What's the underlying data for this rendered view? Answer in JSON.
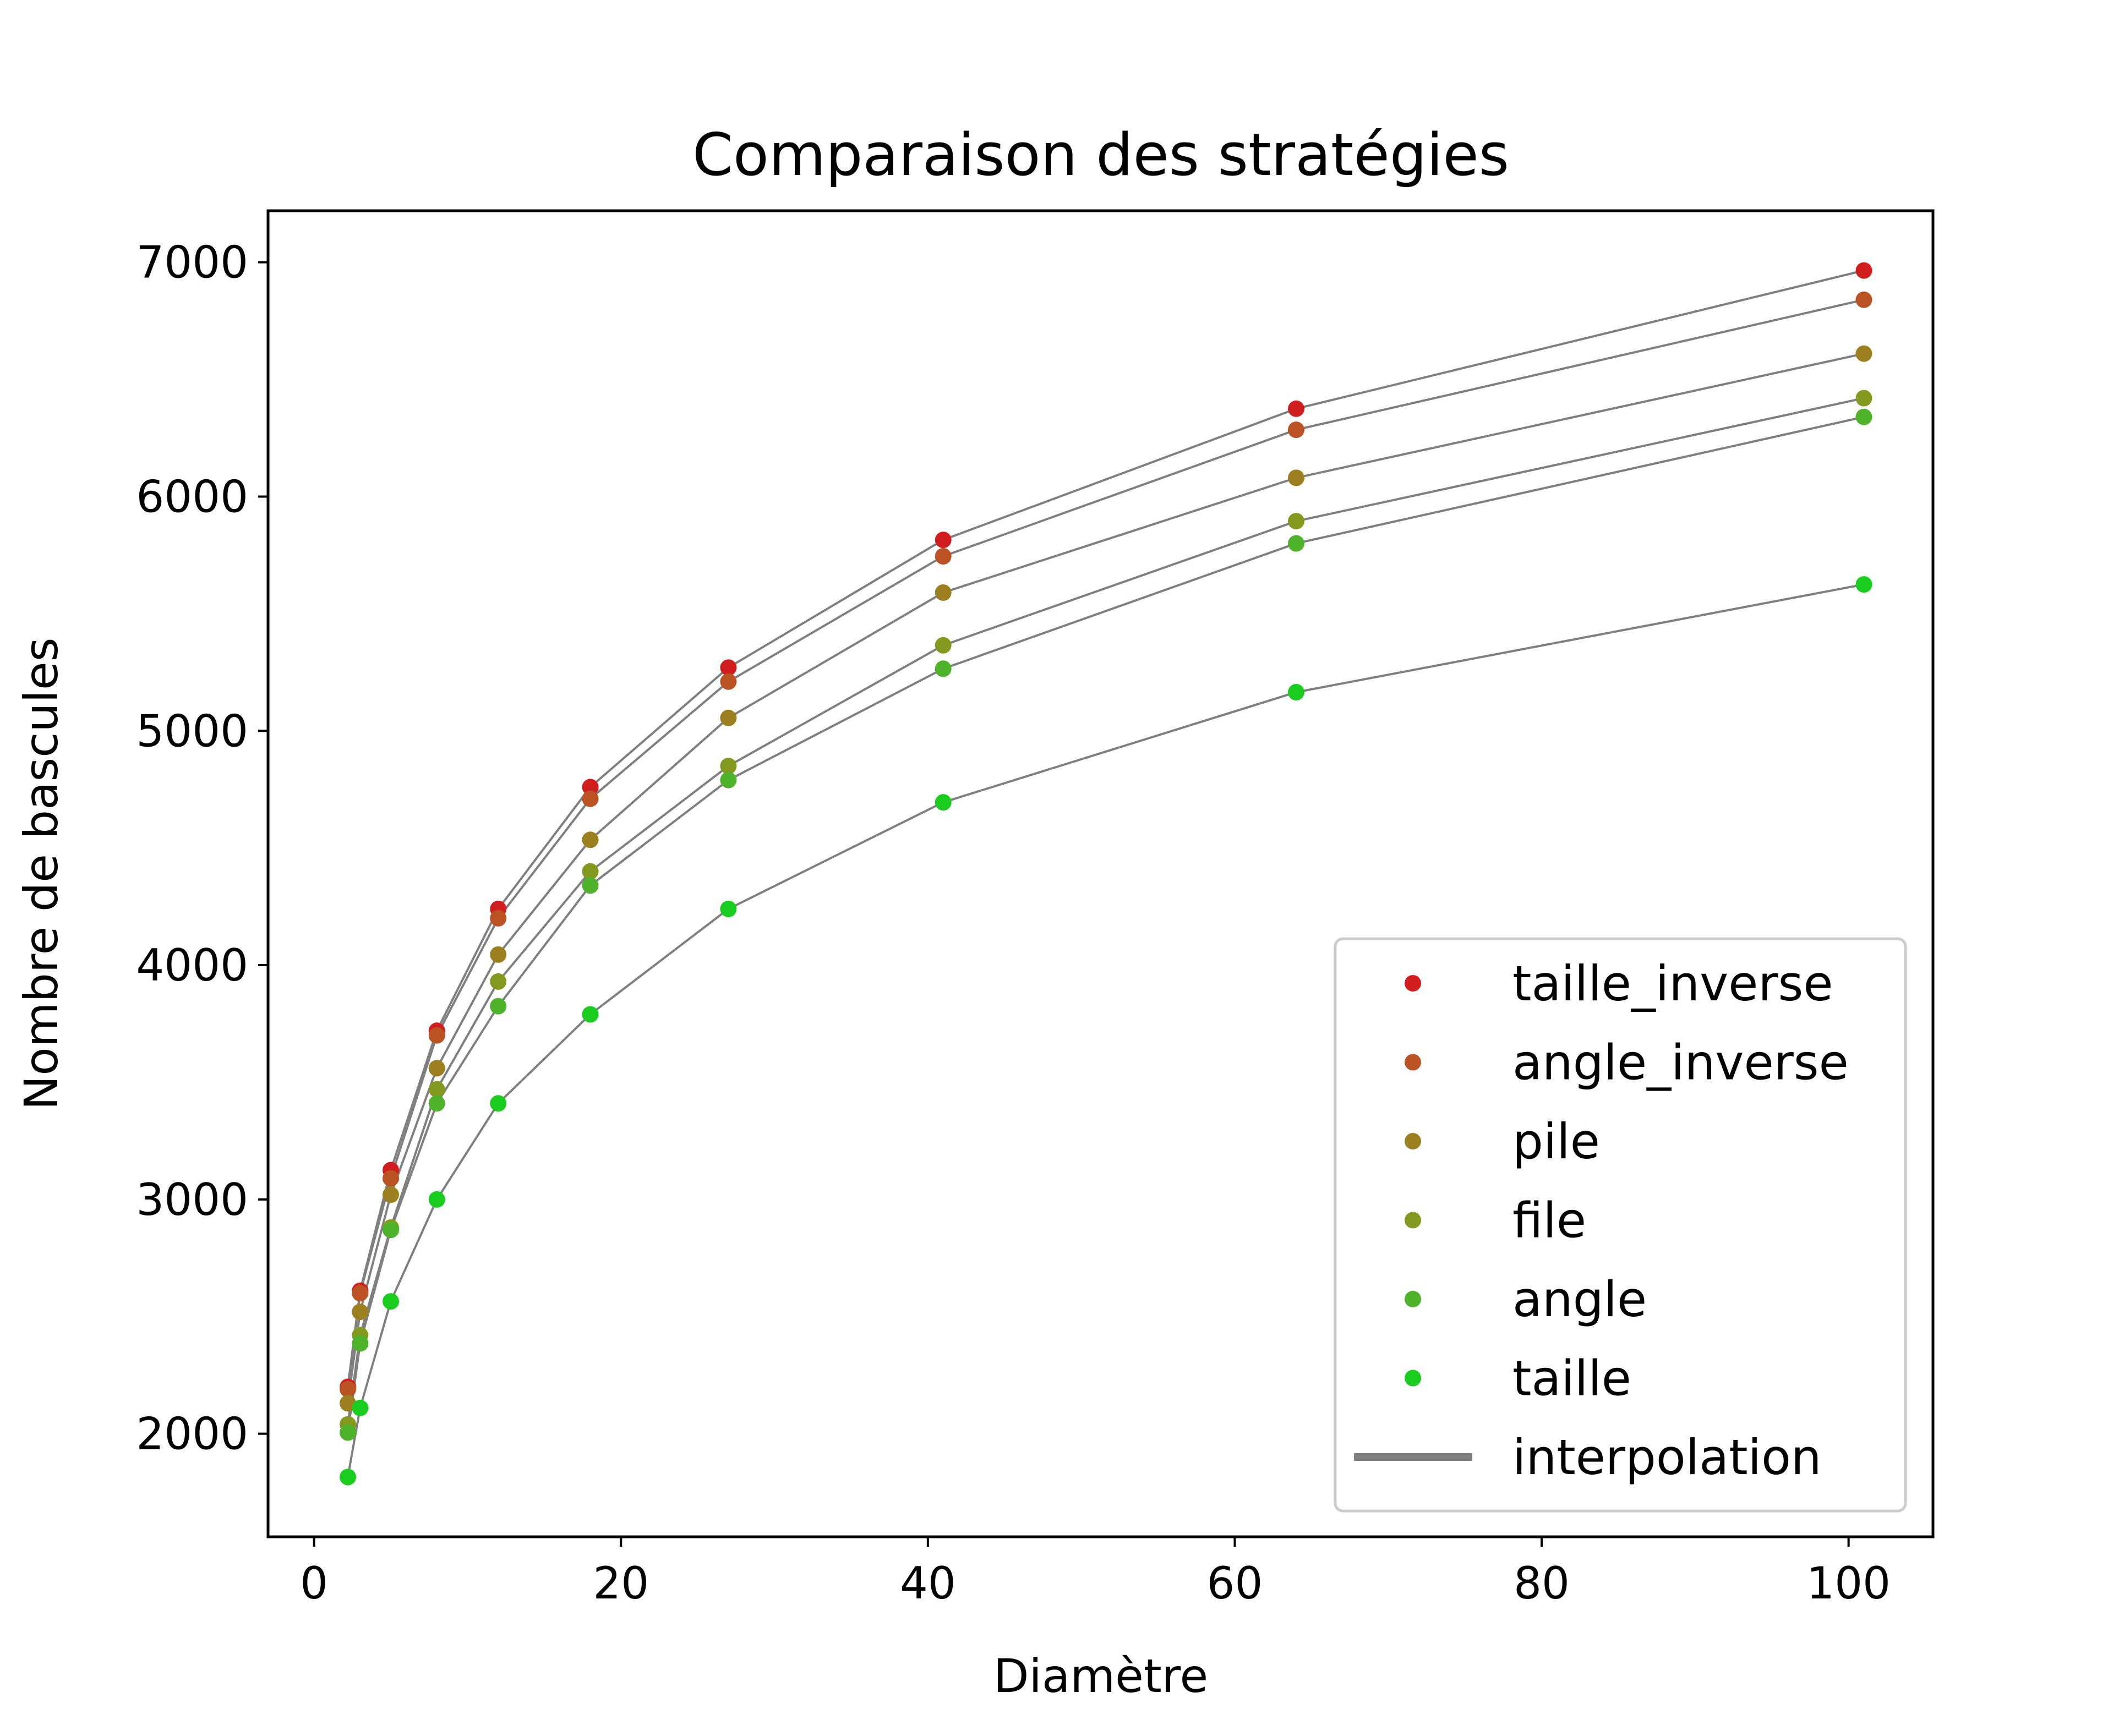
{
  "chart_data": {
    "type": "scatter",
    "title": "Comparaison des stratégies",
    "xlabel": "Diamètre",
    "ylabel": "Nombre de bascules",
    "xlim": [
      -3,
      105.5
    ],
    "ylim": [
      1560,
      7220
    ],
    "xticks": [
      0,
      20,
      40,
      60,
      80,
      100
    ],
    "yticks": [
      2000,
      3000,
      4000,
      5000,
      6000,
      7000
    ],
    "grid": false,
    "legend_position": "bottom-right",
    "x": [
      2.2,
      3,
      5,
      8,
      12,
      18,
      27,
      41,
      64,
      101
    ],
    "series": [
      {
        "name": "taille_inverse",
        "color": "#d01e1e",
        "values": [
          2200,
          2610,
          3125,
          3720,
          4240,
          4760,
          5270,
          5815,
          6375,
          6965
        ]
      },
      {
        "name": "angle_inverse",
        "color": "#ba5224",
        "values": [
          2190,
          2600,
          3090,
          3700,
          4200,
          4710,
          5210,
          5745,
          6285,
          6840
        ]
      },
      {
        "name": "pile",
        "color": "#9c7f1e",
        "values": [
          2130,
          2520,
          3020,
          3560,
          4045,
          4535,
          5055,
          5590,
          6080,
          6610
        ]
      },
      {
        "name": "file",
        "color": "#849a1e",
        "values": [
          2040,
          2420,
          2880,
          3470,
          3930,
          4400,
          4850,
          5365,
          5895,
          6420
        ]
      },
      {
        "name": "angle",
        "color": "#4eb22a",
        "values": [
          2005,
          2385,
          2870,
          3410,
          3825,
          4340,
          4790,
          5265,
          5800,
          6340
        ]
      },
      {
        "name": "taille",
        "color": "#1acc1e",
        "values": [
          1815,
          2110,
          2565,
          3000,
          3410,
          3790,
          4240,
          4695,
          5165,
          5625
        ]
      }
    ],
    "interpolation": {
      "name": "interpolation",
      "color": "#7f7f7f"
    }
  }
}
